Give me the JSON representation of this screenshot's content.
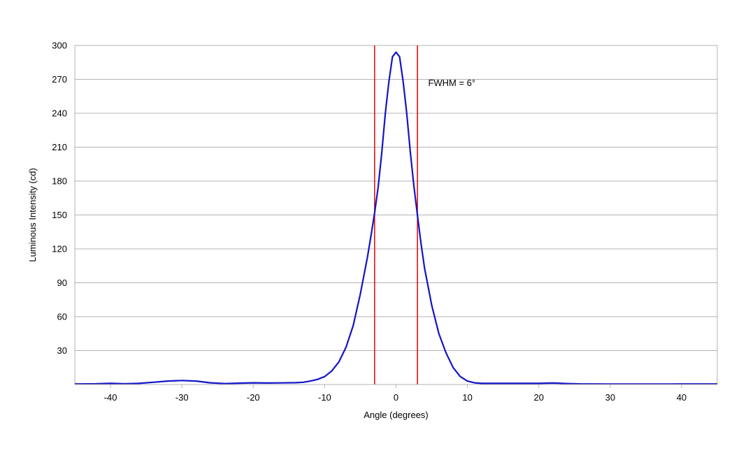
{
  "chart_data": {
    "type": "line",
    "title": "",
    "xlabel": "Angle (degrees)",
    "ylabel": "Luminous Intensity (cd)",
    "xlim": [
      -45,
      45
    ],
    "ylim": [
      0,
      300
    ],
    "x_ticks": [
      -40,
      -30,
      -20,
      -10,
      0,
      10,
      20,
      30,
      40
    ],
    "y_ticks": [
      30,
      60,
      90,
      120,
      150,
      180,
      210,
      240,
      270,
      300
    ],
    "grid": {
      "horizontal": true,
      "vertical": false
    },
    "legend": "none",
    "series": [
      {
        "color": "#1414c8",
        "x": [
          -45,
          -42,
          -40,
          -38,
          -36,
          -34,
          -32,
          -30,
          -28,
          -26,
          -24,
          -22,
          -20,
          -18,
          -16,
          -14,
          -13,
          -12,
          -11,
          -10,
          -9,
          -8,
          -7,
          -6,
          -5,
          -4,
          -3.5,
          -3,
          -2.5,
          -2,
          -1.5,
          -1,
          -0.5,
          0,
          0.5,
          1,
          1.5,
          2,
          2.5,
          3,
          3.5,
          4,
          5,
          6,
          7,
          8,
          9,
          10,
          11,
          12,
          14,
          16,
          18,
          20,
          22,
          24,
          26,
          28,
          30,
          32,
          34,
          36,
          38,
          40,
          42,
          45
        ],
        "y": [
          0.5,
          0.6,
          1.0,
          0.6,
          1.0,
          2.0,
          3.0,
          3.5,
          3.0,
          1.5,
          0.8,
          1.2,
          1.5,
          1.3,
          1.4,
          1.6,
          2.0,
          3.0,
          4.5,
          7.0,
          12.0,
          20.0,
          33.0,
          52.0,
          80.0,
          113.0,
          132.0,
          152.0,
          175.0,
          205.0,
          240.0,
          268.0,
          290.0,
          294.0,
          290.0,
          268.0,
          240.0,
          206.0,
          176.0,
          150.0,
          125.0,
          103.0,
          70.0,
          45.0,
          28.0,
          15.0,
          7.0,
          3.0,
          1.5,
          1.0,
          1.0,
          1.0,
          1.0,
          1.0,
          1.3,
          0.8,
          0.5,
          0.5,
          0.4,
          0.4,
          0.4,
          0.4,
          0.4,
          0.5,
          0.5,
          0.5
        ]
      }
    ],
    "reference_lines": [
      {
        "axis": "x",
        "value": -3,
        "color": "#e00000"
      },
      {
        "axis": "x",
        "value": 3,
        "color": "#e00000"
      }
    ],
    "annotations": [
      {
        "text": "FWHM = 6°",
        "x": 4.5,
        "y": 264
      }
    ]
  }
}
